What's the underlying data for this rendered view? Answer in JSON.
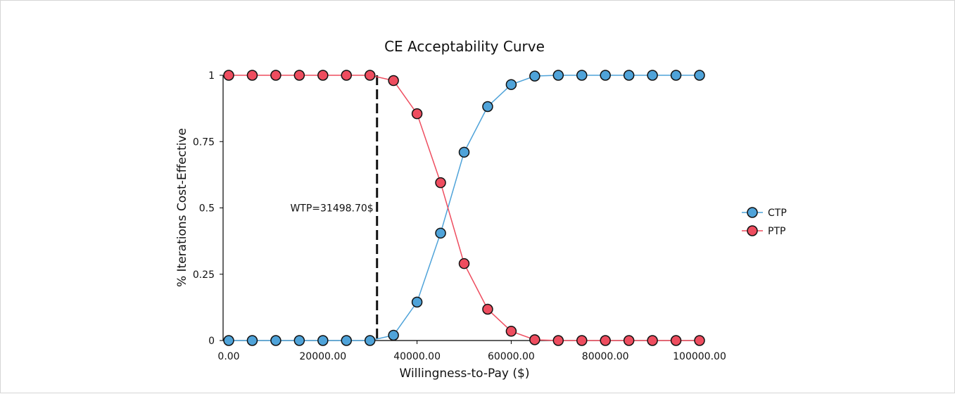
{
  "chart_data": {
    "type": "line",
    "title": "CE Acceptability Curve",
    "xlabel": "Willingness-to-Pay ($)",
    "ylabel": "% Iterations Cost-Effective",
    "xlim": [
      0,
      100000
    ],
    "ylim": [
      0,
      1
    ],
    "x_ticks": [
      "0.00",
      "20000.00",
      "40000.00",
      "60000.00",
      "80000.00",
      "100000.00"
    ],
    "y_ticks": [
      "0",
      "0.25",
      "0.5",
      "0.75",
      "1"
    ],
    "grid": false,
    "legend": "right",
    "x": [
      0,
      5000,
      10000,
      15000,
      20000,
      25000,
      30000,
      35000,
      40000,
      45000,
      50000,
      55000,
      60000,
      65000,
      70000,
      75000,
      80000,
      85000,
      90000,
      95000,
      100000
    ],
    "series": [
      {
        "name": "CTP",
        "color": "#4fa3d9",
        "values": [
          0,
          0,
          0,
          0,
          0,
          0,
          0,
          0.02,
          0.145,
          0.405,
          0.71,
          0.882,
          0.965,
          0.997,
          1,
          1,
          1,
          1,
          1,
          1,
          1
        ]
      },
      {
        "name": "PTP",
        "color": "#ee4d5f",
        "values": [
          1,
          1,
          1,
          1,
          1,
          1,
          1,
          0.98,
          0.855,
          0.595,
          0.29,
          0.118,
          0.035,
          0.003,
          0,
          0,
          0,
          0,
          0,
          0,
          0
        ]
      }
    ],
    "annotations": [
      {
        "type": "vline",
        "x": 31498.7,
        "label": "WTP=31498.70$"
      }
    ]
  }
}
